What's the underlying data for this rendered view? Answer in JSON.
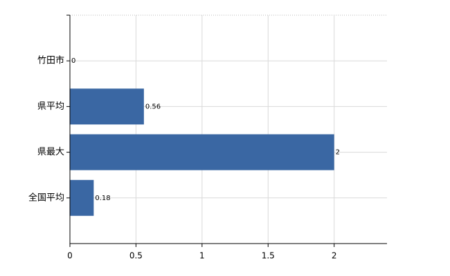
{
  "chart_data": {
    "type": "bar",
    "orientation": "horizontal",
    "categories": [
      "竹田市",
      "県平均",
      "県最大",
      "全国平均"
    ],
    "values": [
      0,
      0.56,
      2,
      0.18
    ],
    "color": "#3a67a3",
    "xlim": [
      0,
      2.4
    ],
    "xticks": [
      0,
      0.5,
      1,
      1.5,
      2
    ],
    "grid": true
  }
}
